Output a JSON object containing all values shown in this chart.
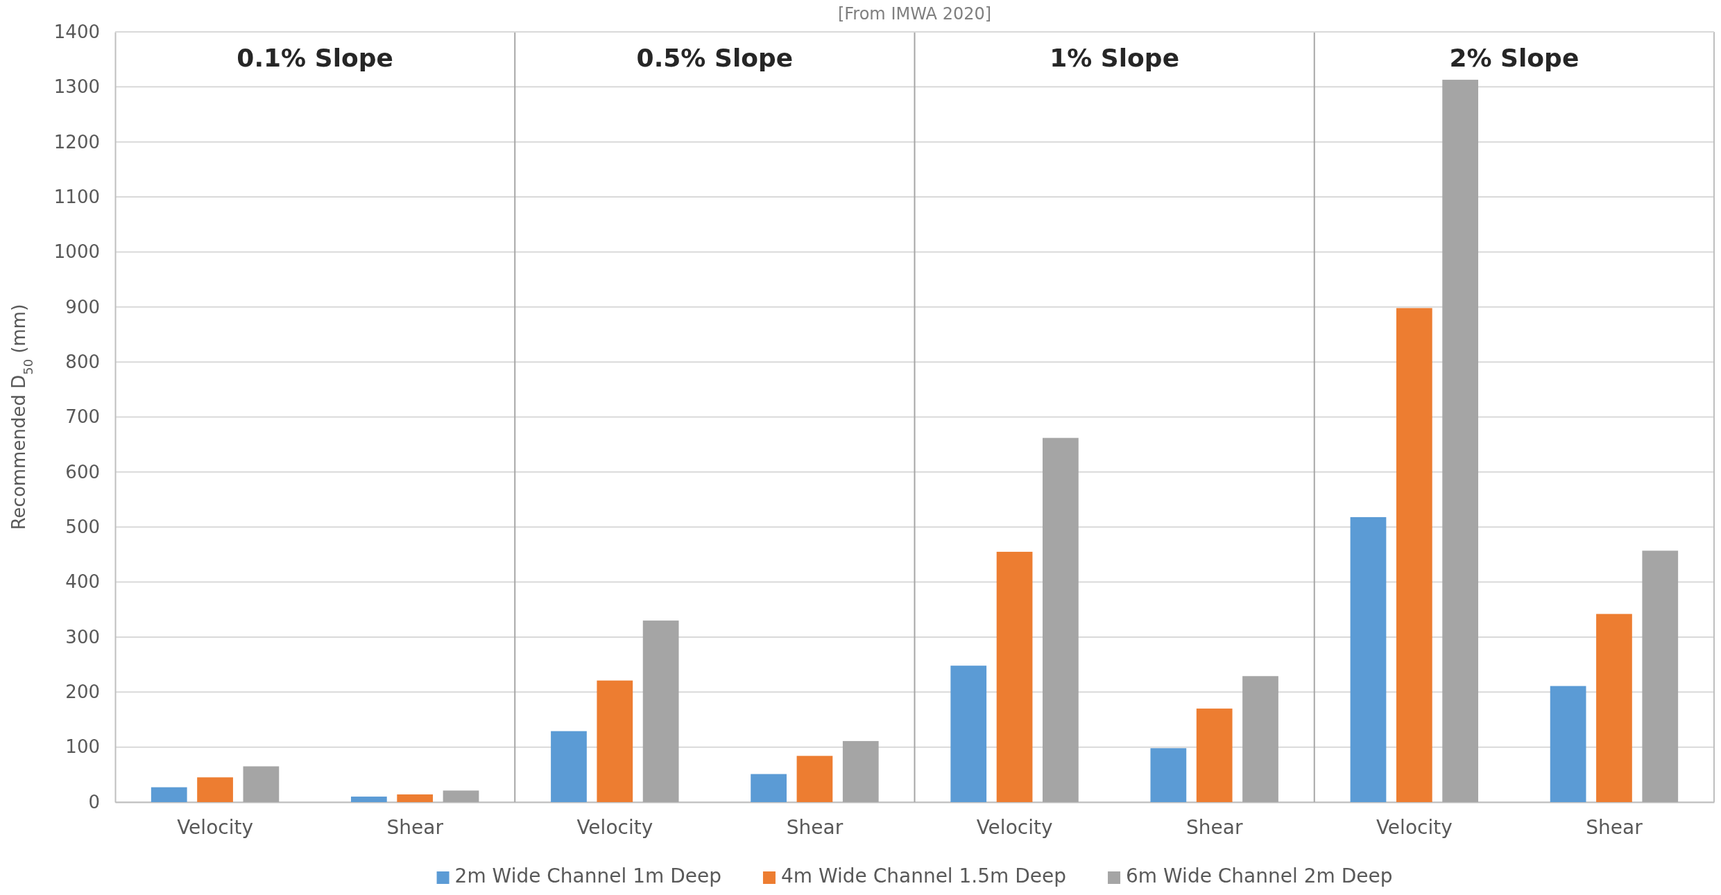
{
  "chart_data": {
    "type": "bar",
    "ylabel": "Recommended D$_{50}$ (mm)",
    "categories": [
      "Velocity",
      "Shear",
      "Velocity",
      "Shear",
      "Velocity",
      "Shear",
      "Velocity",
      "Shear"
    ],
    "series": [
      {
        "name": "2m Wide Channel 1m Deep",
        "color": "#5b9bd5",
        "values": [
          27,
          10,
          129,
          51,
          248,
          98,
          518,
          211
        ]
      },
      {
        "name": "4m Wide Channel 1.5m Deep",
        "color": "#ed7d31",
        "values": [
          45,
          14,
          221,
          84,
          455,
          170,
          898,
          342
        ]
      },
      {
        "name": "6m Wide Channel 2m Deep",
        "color": "#a5a5a5",
        "values": [
          65,
          21,
          330,
          111,
          662,
          229,
          1313,
          457
        ]
      }
    ],
    "ylim": [
      0,
      1400
    ],
    "yticks": [
      0,
      100,
      200,
      300,
      400,
      500,
      600,
      700,
      800,
      900,
      1000,
      1100,
      1200,
      1300,
      1400
    ],
    "grid": "y",
    "legend": "bottom",
    "annotations": [
      "0.1% Slope",
      "0.5% Slope",
      "1% Slope",
      "2% Slope",
      "[From IMWA 2020]"
    ]
  }
}
